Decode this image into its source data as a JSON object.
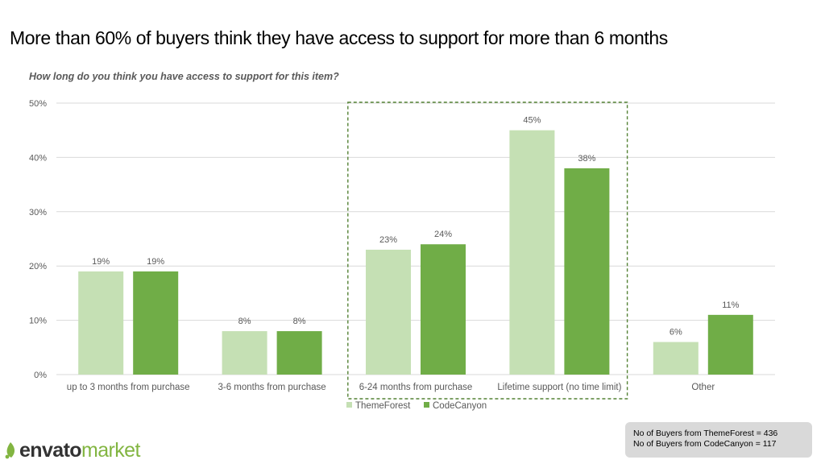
{
  "title": "More than 60% of buyers think they have access to support for more than 6 months",
  "logo": {
    "part1": "envato",
    "part2": "market"
  },
  "note": {
    "line1": "No of Buyers from ThemeForest = 436",
    "line2": "No of Buyers from CodeCanyon = 117"
  },
  "colors": {
    "themeforest": "#c5e0b4",
    "codecanyon": "#70ad47",
    "highlight": "#548235",
    "grid": "#d9d9d9"
  },
  "chart_data": {
    "type": "bar",
    "title": "How long do you think you have access to support for this item?",
    "xlabel": "",
    "ylabel": "",
    "ylim": [
      0,
      50
    ],
    "ytick_labels": [
      "0%",
      "10%",
      "20%",
      "30%",
      "40%",
      "50%"
    ],
    "categories": [
      "up to 3 months from purchase",
      "3-6 months from purchase",
      "6-24 months from purchase",
      "Lifetime support (no time limit)",
      "Other"
    ],
    "series": [
      {
        "name": "ThemeForest",
        "values": [
          19,
          8,
          23,
          45,
          6
        ],
        "labels": [
          "19%",
          "8%",
          "23%",
          "45%",
          "6%"
        ]
      },
      {
        "name": "CodeCanyon",
        "values": [
          19,
          8,
          24,
          38,
          11
        ],
        "labels": [
          "19%",
          "8%",
          "24%",
          "38%",
          "11%"
        ]
      }
    ],
    "highlighted_categories": [
      2,
      3
    ],
    "grid": true,
    "legend_position": "bottom"
  }
}
